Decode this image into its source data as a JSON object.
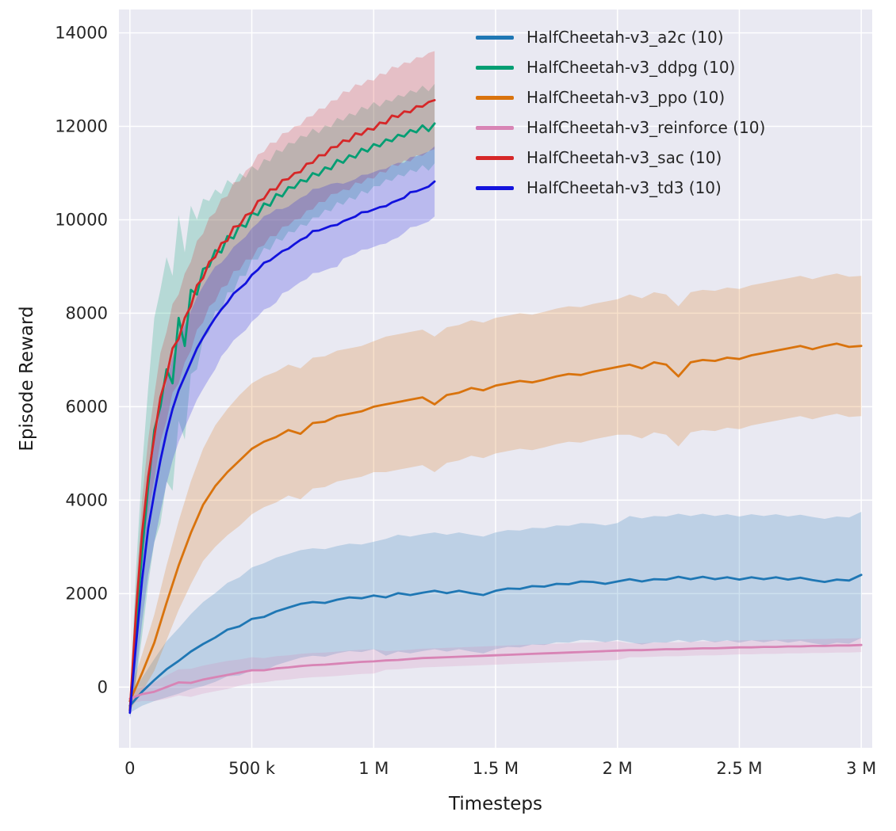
{
  "chart_data": {
    "type": "line",
    "title": "",
    "xlabel": "Timesteps",
    "ylabel": "Episode Reward",
    "grid": true,
    "legend_position": "upper right inside plot",
    "plot_bg_color": "#e9e9f2",
    "grid_color": "#ffffff",
    "x_unit": "timesteps (values in thousands)",
    "xlim_k": [
      0,
      3000
    ],
    "ylim": [
      -1300,
      14500
    ],
    "x_ticks": [
      {
        "v": 0,
        "label": "0"
      },
      {
        "v": 500,
        "label": "500 k"
      },
      {
        "v": 1000,
        "label": "1 M"
      },
      {
        "v": 1500,
        "label": "1.5 M"
      },
      {
        "v": 2000,
        "label": "2 M"
      },
      {
        "v": 2500,
        "label": "2.5 M"
      },
      {
        "v": 3000,
        "label": "3 M"
      }
    ],
    "y_ticks": [
      {
        "v": 0,
        "label": "0"
      },
      {
        "v": 2000,
        "label": "2000"
      },
      {
        "v": 4000,
        "label": "4000"
      },
      {
        "v": 6000,
        "label": "6000"
      },
      {
        "v": 8000,
        "label": "8000"
      },
      {
        "v": 10000,
        "label": "10000"
      },
      {
        "v": 12000,
        "label": "12000"
      },
      {
        "v": 14000,
        "label": "14000"
      }
    ],
    "x_offpolicy_k": [
      0,
      25,
      50,
      75,
      100,
      125,
      150,
      175,
      200,
      225,
      250,
      275,
      300,
      325,
      350,
      375,
      400,
      425,
      450,
      475,
      500,
      525,
      550,
      575,
      600,
      625,
      650,
      675,
      700,
      725,
      750,
      775,
      800,
      825,
      850,
      875,
      900,
      925,
      950,
      975,
      1000,
      1025,
      1050,
      1075,
      1100,
      1125,
      1150,
      1175,
      1200,
      1225,
      1250
    ],
    "x_onpolicy_k": [
      0,
      50,
      100,
      150,
      200,
      250,
      300,
      350,
      400,
      450,
      500,
      550,
      600,
      650,
      700,
      750,
      800,
      850,
      900,
      950,
      1000,
      1050,
      1100,
      1150,
      1200,
      1250,
      1300,
      1350,
      1400,
      1450,
      1500,
      1550,
      1600,
      1650,
      1700,
      1750,
      1800,
      1850,
      1900,
      1950,
      2000,
      2050,
      2100,
      2150,
      2200,
      2250,
      2300,
      2350,
      2400,
      2450,
      2500,
      2550,
      2600,
      2650,
      2700,
      2750,
      2800,
      2850,
      2900,
      2950,
      3000
    ],
    "band_opacity": 0.22,
    "series": [
      {
        "name": "HalfCheetah-v3_a2c (10)",
        "color": "#1f77b4",
        "x_ref": "x_onpolicy_k",
        "mean": [
          -400,
          -100,
          150,
          380,
          560,
          760,
          920,
          1060,
          1230,
          1300,
          1460,
          1500,
          1620,
          1700,
          1780,
          1820,
          1800,
          1870,
          1920,
          1900,
          1960,
          1920,
          2010,
          1970,
          2020,
          2060,
          2010,
          2060,
          2010,
          1970,
          2060,
          2110,
          2100,
          2160,
          2150,
          2210,
          2200,
          2260,
          2250,
          2210,
          2260,
          2310,
          2260,
          2310,
          2300,
          2360,
          2310,
          2360,
          2310,
          2350,
          2300,
          2350,
          2310,
          2350,
          2300,
          2340,
          2290,
          2250,
          2300,
          2280,
          2400
        ],
        "hw": [
          150,
          300,
          450,
          600,
          700,
          800,
          900,
          950,
          1000,
          1050,
          1100,
          1150,
          1150,
          1150,
          1150,
          1150,
          1150,
          1150,
          1150,
          1150,
          1150,
          1250,
          1250,
          1250,
          1250,
          1250,
          1250,
          1250,
          1250,
          1250,
          1250,
          1250,
          1250,
          1250,
          1250,
          1250,
          1250,
          1250,
          1250,
          1250,
          1250,
          1350,
          1350,
          1350,
          1350,
          1350,
          1350,
          1350,
          1350,
          1350,
          1350,
          1350,
          1350,
          1350,
          1350,
          1350,
          1350,
          1350,
          1350,
          1350,
          1350
        ]
      },
      {
        "name": "HalfCheetah-v3_ddpg (10)",
        "color": "#029e73",
        "x_ref": "x_offpolicy_k",
        "mean": [
          -500,
          1300,
          2900,
          4300,
          5500,
          6000,
          6800,
          6500,
          7900,
          7300,
          8500,
          8400,
          8950,
          9000,
          9350,
          9300,
          9650,
          9600,
          9900,
          9850,
          10150,
          10100,
          10350,
          10300,
          10550,
          10500,
          10700,
          10680,
          10850,
          10820,
          11000,
          10950,
          11120,
          11080,
          11280,
          11220,
          11380,
          11330,
          11520,
          11460,
          11620,
          11570,
          11720,
          11680,
          11820,
          11780,
          11920,
          11870,
          12020,
          11900,
          12060
        ],
        "hw": [
          150,
          1200,
          1800,
          2100,
          2400,
          2500,
          2400,
          2300,
          2200,
          2000,
          1800,
          1600,
          1500,
          1400,
          1300,
          1250,
          1200,
          1150,
          1100,
          1050,
          1000,
          950,
          950,
          950,
          950,
          950,
          950,
          950,
          950,
          950,
          950,
          900,
          900,
          900,
          900,
          900,
          900,
          900,
          900,
          900,
          900,
          850,
          850,
          850,
          850,
          850,
          850,
          850,
          850,
          850,
          850
        ]
      },
      {
        "name": "HalfCheetah-v3_ppo (10)",
        "color": "#d9730d",
        "x_ref": "x_onpolicy_k",
        "mean": [
          -300,
          300,
          950,
          1800,
          2600,
          3300,
          3900,
          4300,
          4600,
          4850,
          5100,
          5250,
          5350,
          5500,
          5420,
          5650,
          5680,
          5800,
          5850,
          5900,
          6000,
          6050,
          6100,
          6150,
          6200,
          6050,
          6250,
          6300,
          6400,
          6350,
          6450,
          6500,
          6550,
          6520,
          6580,
          6650,
          6700,
          6680,
          6750,
          6800,
          6850,
          6900,
          6820,
          6950,
          6900,
          6650,
          6950,
          7000,
          6980,
          7050,
          7020,
          7100,
          7150,
          7200,
          7250,
          7300,
          7230,
          7300,
          7350,
          7280,
          7300
        ],
        "hw": [
          200,
          400,
          600,
          800,
          950,
          1100,
          1200,
          1300,
          1350,
          1400,
          1400,
          1400,
          1400,
          1400,
          1400,
          1400,
          1400,
          1400,
          1400,
          1400,
          1400,
          1450,
          1450,
          1450,
          1450,
          1450,
          1450,
          1450,
          1450,
          1450,
          1450,
          1450,
          1450,
          1450,
          1450,
          1450,
          1450,
          1450,
          1450,
          1450,
          1450,
          1500,
          1500,
          1500,
          1500,
          1500,
          1500,
          1500,
          1500,
          1500,
          1500,
          1500,
          1500,
          1500,
          1500,
          1500,
          1500,
          1500,
          1500,
          1500,
          1500
        ]
      },
      {
        "name": "HalfCheetah-v3_reinforce (10)",
        "color": "#d884b5",
        "x_ref": "x_onpolicy_k",
        "mean": [
          -250,
          -150,
          -100,
          0,
          100,
          90,
          160,
          210,
          260,
          310,
          360,
          360,
          400,
          420,
          450,
          470,
          480,
          500,
          520,
          540,
          550,
          570,
          580,
          600,
          620,
          630,
          640,
          650,
          660,
          670,
          680,
          690,
          700,
          710,
          720,
          730,
          740,
          750,
          760,
          770,
          780,
          790,
          790,
          800,
          810,
          810,
          820,
          830,
          830,
          840,
          850,
          850,
          860,
          860,
          870,
          870,
          880,
          880,
          890,
          890,
          900
        ],
        "hw": [
          100,
          150,
          200,
          250,
          280,
          300,
          300,
          300,
          300,
          280,
          280,
          260,
          260,
          260,
          260,
          260,
          260,
          260,
          260,
          260,
          260,
          200,
          200,
          200,
          200,
          200,
          200,
          200,
          200,
          200,
          200,
          200,
          200,
          200,
          200,
          200,
          200,
          200,
          200,
          200,
          200,
          150,
          150,
          150,
          150,
          150,
          150,
          150,
          150,
          150,
          150,
          150,
          150,
          150,
          150,
          150,
          150,
          150,
          150,
          150,
          150
        ]
      },
      {
        "name": "HalfCheetah-v3_sac (10)",
        "color": "#d62728",
        "x_ref": "x_offpolicy_k",
        "mean": [
          -500,
          1600,
          3300,
          4500,
          5350,
          6200,
          6650,
          7250,
          7450,
          7900,
          8150,
          8600,
          8750,
          9100,
          9200,
          9500,
          9550,
          9850,
          9870,
          10100,
          10150,
          10400,
          10450,
          10650,
          10650,
          10850,
          10870,
          11000,
          11020,
          11200,
          11220,
          11380,
          11380,
          11550,
          11560,
          11700,
          11680,
          11850,
          11820,
          11950,
          11930,
          12080,
          12060,
          12230,
          12200,
          12320,
          12300,
          12430,
          12420,
          12520,
          12560
        ],
        "hw": [
          120,
          500,
          700,
          800,
          900,
          950,
          950,
          950,
          950,
          950,
          950,
          950,
          950,
          950,
          950,
          950,
          950,
          950,
          950,
          950,
          1000,
          1000,
          1000,
          1000,
          1000,
          1000,
          1000,
          1000,
          1000,
          1000,
          1000,
          1000,
          1000,
          1000,
          1000,
          1050,
          1050,
          1050,
          1050,
          1050,
          1050,
          1050,
          1050,
          1050,
          1050,
          1050,
          1050,
          1050,
          1050,
          1050,
          1050
        ]
      },
      {
        "name": "HalfCheetah-v3_td3 (10)",
        "color": "#1212dd",
        "x_ref": "x_offpolicy_k",
        "mean": [
          -550,
          900,
          2300,
          3400,
          4150,
          4850,
          5450,
          5950,
          6350,
          6650,
          6950,
          7250,
          7480,
          7700,
          7900,
          8080,
          8230,
          8420,
          8530,
          8640,
          8820,
          8930,
          9080,
          9130,
          9230,
          9330,
          9380,
          9480,
          9570,
          9630,
          9760,
          9770,
          9820,
          9870,
          9890,
          9970,
          10020,
          10070,
          10160,
          10170,
          10220,
          10270,
          10290,
          10370,
          10420,
          10470,
          10590,
          10610,
          10660,
          10710,
          10820
        ],
        "hw": [
          150,
          700,
          900,
          1000,
          1050,
          1100,
          1100,
          1100,
          1100,
          1100,
          1100,
          1100,
          1100,
          1100,
          1100,
          1000,
          1000,
          1000,
          1000,
          1000,
          1000,
          1000,
          1000,
          1000,
          1000,
          900,
          900,
          900,
          900,
          900,
          900,
          900,
          900,
          900,
          900,
          800,
          800,
          800,
          800,
          800,
          800,
          800,
          800,
          800,
          800,
          750,
          750,
          750,
          750,
          750,
          750
        ]
      }
    ]
  }
}
